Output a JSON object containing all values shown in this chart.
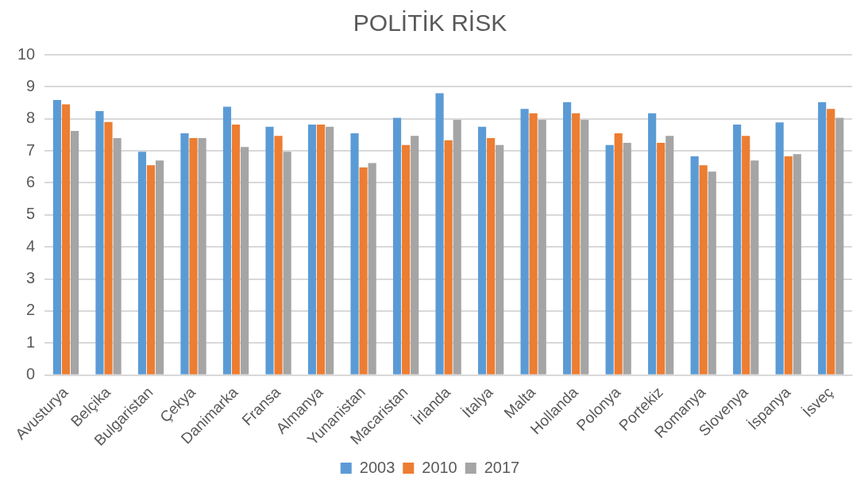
{
  "chart_data": {
    "type": "bar",
    "title": "POLİTİK RİSK",
    "categories": [
      "Avusturya",
      "Belçika",
      "Bulgaristan",
      "Çekya",
      "Danimarka",
      "Fransa",
      "Almanya",
      "Yunanistan",
      "Macaristan",
      "İrlanda",
      "İtalya",
      "Malta",
      "Hollanda",
      "Polonya",
      "Portekiz",
      "Romanya",
      "Slovenya",
      "İspanya",
      "İsveç"
    ],
    "series": [
      {
        "name": "2003",
        "color": "#5b9bd5",
        "values": [
          8.59,
          8.24,
          6.97,
          7.55,
          8.38,
          7.75,
          7.82,
          7.55,
          8.03,
          8.8,
          7.75,
          8.31,
          8.52,
          7.18,
          8.17,
          6.83,
          7.82,
          7.89,
          8.52
        ]
      },
      {
        "name": "2010",
        "color": "#ed7d31",
        "values": [
          8.45,
          7.9,
          6.55,
          7.4,
          7.82,
          7.47,
          7.82,
          6.48,
          7.18,
          7.33,
          7.4,
          8.17,
          8.17,
          7.55,
          7.25,
          6.55,
          7.47,
          6.83,
          8.31
        ]
      },
      {
        "name": "2017",
        "color": "#a5a5a5",
        "values": [
          7.62,
          7.4,
          6.7,
          7.4,
          7.12,
          6.97,
          7.75,
          6.62,
          7.47,
          7.97,
          7.18,
          7.97,
          7.97,
          7.25,
          7.47,
          6.35,
          6.7,
          6.9,
          8.03
        ]
      }
    ],
    "ylim": [
      0,
      10
    ],
    "yticks": [
      0,
      1,
      2,
      3,
      4,
      5,
      6,
      7,
      8,
      9,
      10
    ],
    "grid": "y",
    "legend": "bottom"
  }
}
